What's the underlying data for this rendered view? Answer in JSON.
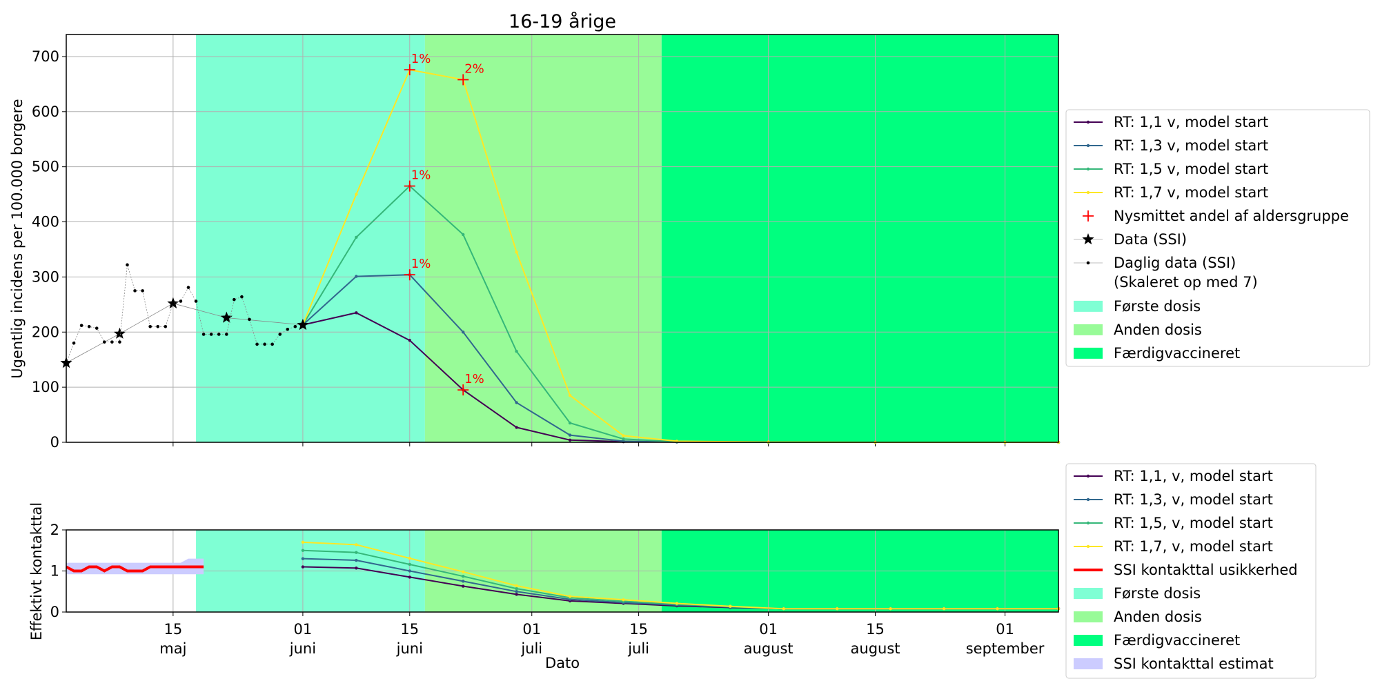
{
  "chart_data": [
    {
      "type": "line",
      "title": "16-19 årige",
      "xlabel": "",
      "ylabel": "Ugentlig incidens per 100.000 borgere",
      "ylim": [
        0,
        740
      ],
      "yticks": [
        0,
        100,
        200,
        300,
        400,
        500,
        600,
        700
      ],
      "xlim": [
        "2021-05-01",
        "2021-09-08"
      ],
      "grid": true,
      "legend_position": "right",
      "shaded_regions": [
        {
          "name": "Første dosis",
          "start": "2021-05-18",
          "end": "2021-06-17",
          "color": "#7fffd4"
        },
        {
          "name": "Anden dosis",
          "start": "2021-06-17",
          "end": "2021-07-18",
          "color": "#98fb98"
        },
        {
          "name": "Færdigvaccineret",
          "start": "2021-07-18",
          "end": "2021-09-08",
          "color": "#00ff7f"
        }
      ],
      "series": [
        {
          "name": "RT: 1,1 v, model start",
          "color": "#440154",
          "x": [
            "2021-06-01",
            "2021-06-08",
            "2021-06-15",
            "2021-06-22",
            "2021-06-29",
            "2021-07-06",
            "2021-07-13",
            "2021-07-20",
            "2021-08-01",
            "2021-08-15",
            "2021-09-01",
            "2021-09-08"
          ],
          "y": [
            213,
            235,
            185,
            95,
            27,
            4,
            1,
            0.5,
            0,
            0,
            0,
            0
          ]
        },
        {
          "name": "RT: 1,3 v, model start",
          "color": "#31688e",
          "x": [
            "2021-06-01",
            "2021-06-08",
            "2021-06-15",
            "2021-06-22",
            "2021-06-29",
            "2021-07-06",
            "2021-07-13",
            "2021-07-20",
            "2021-08-01",
            "2021-08-15",
            "2021-09-01",
            "2021-09-08"
          ],
          "y": [
            213,
            301,
            304,
            200,
            72,
            13,
            2,
            0.5,
            0,
            0,
            0,
            0
          ]
        },
        {
          "name": "RT: 1,5 v, model start",
          "color": "#35b779",
          "x": [
            "2021-06-01",
            "2021-06-08",
            "2021-06-15",
            "2021-06-22",
            "2021-06-29",
            "2021-07-06",
            "2021-07-13",
            "2021-07-20",
            "2021-08-01",
            "2021-08-15",
            "2021-09-01",
            "2021-09-08"
          ],
          "y": [
            213,
            372,
            465,
            377,
            165,
            35,
            6,
            1,
            0,
            0,
            0,
            0
          ]
        },
        {
          "name": "RT: 1,7 v, model start",
          "color": "#fde725",
          "x": [
            "2021-06-01",
            "2021-06-08",
            "2021-06-15",
            "2021-06-22",
            "2021-06-29",
            "2021-07-06",
            "2021-07-13",
            "2021-07-20",
            "2021-08-01",
            "2021-08-15",
            "2021-09-01",
            "2021-09-08"
          ],
          "y": [
            213,
            450,
            676,
            658,
            345,
            85,
            12,
            2,
            0.5,
            0,
            0,
            0
          ]
        },
        {
          "name": "Nysmittet andel af aldersgruppe",
          "marker": "+",
          "color": "#ff0000",
          "x": [
            "2021-06-22",
            "2021-06-15",
            "2021-06-15",
            "2021-06-15",
            "2021-06-22"
          ],
          "y": [
            95,
            304,
            465,
            676,
            658
          ],
          "labels": [
            "1%",
            "1%",
            "1%",
            "1%",
            "2%"
          ]
        },
        {
          "name": "Data (SSI)",
          "marker": "star",
          "color": "#000000",
          "x": [
            "2021-05-01",
            "2021-05-08",
            "2021-05-15",
            "2021-05-22",
            "2021-06-01"
          ],
          "y": [
            144,
            197,
            252,
            226,
            213
          ]
        },
        {
          "name": "Daglig data (SSI)\n(Skaleret op med 7)",
          "marker": "dot",
          "color": "#000000",
          "x": [
            "2021-05-01",
            "2021-05-02",
            "2021-05-03",
            "2021-05-04",
            "2021-05-05",
            "2021-05-06",
            "2021-05-07",
            "2021-05-08",
            "2021-05-09",
            "2021-05-10",
            "2021-05-11",
            "2021-05-12",
            "2021-05-13",
            "2021-05-14",
            "2021-05-15",
            "2021-05-16",
            "2021-05-17",
            "2021-05-18",
            "2021-05-19",
            "2021-05-20",
            "2021-05-21",
            "2021-05-22",
            "2021-05-23",
            "2021-05-24",
            "2021-05-25",
            "2021-05-26",
            "2021-05-27",
            "2021-05-28",
            "2021-05-29",
            "2021-05-30",
            "2021-05-31"
          ],
          "y": [
            144,
            180,
            212,
            210,
            207,
            182,
            182,
            182,
            322,
            275,
            275,
            210,
            210,
            210,
            252,
            256,
            281,
            256,
            196,
            196,
            196,
            196,
            259,
            264,
            223,
            178,
            178,
            178,
            196,
            205,
            210
          ]
        }
      ]
    },
    {
      "type": "line",
      "title": "",
      "xlabel": "Dato",
      "ylabel": "Effektivt kontakttal",
      "ylim": [
        0,
        2
      ],
      "yticks": [
        0,
        1,
        2
      ],
      "xticks": [
        {
          "date": "2021-05-15",
          "label": "15\nmaj"
        },
        {
          "date": "2021-06-01",
          "label": "01\njuni"
        },
        {
          "date": "2021-06-15",
          "label": "15\njuni"
        },
        {
          "date": "2021-07-01",
          "label": "01\njuli"
        },
        {
          "date": "2021-07-15",
          "label": "15\njuli"
        },
        {
          "date": "2021-08-01",
          "label": "01\naugust"
        },
        {
          "date": "2021-08-15",
          "label": "15\naugust"
        },
        {
          "date": "2021-09-01",
          "label": "01\nseptember"
        }
      ],
      "xlim": [
        "2021-05-01",
        "2021-09-08"
      ],
      "grid": true,
      "legend_position": "right",
      "shaded_regions": [
        {
          "name": "Første dosis",
          "start": "2021-05-18",
          "end": "2021-06-17",
          "color": "#7fffd4"
        },
        {
          "name": "Anden dosis",
          "start": "2021-06-17",
          "end": "2021-07-18",
          "color": "#98fb98"
        },
        {
          "name": "Færdigvaccineret",
          "start": "2021-07-18",
          "end": "2021-09-08",
          "color": "#00ff7f"
        }
      ],
      "band": {
        "name": "SSI kontakttal estimat",
        "color": "#ccccff",
        "x": [
          "2021-05-01",
          "2021-05-14",
          "2021-05-15",
          "2021-05-16",
          "2021-05-17",
          "2021-05-18",
          "2021-05-19"
        ],
        "lower": [
          0.92,
          0.92,
          0.92,
          0.92,
          0.92,
          0.92,
          0.92
        ],
        "upper": [
          1.2,
          1.2,
          1.2,
          1.2,
          1.3,
          1.3,
          1.3
        ]
      },
      "series": [
        {
          "name": "RT: 1,1, v, model start",
          "color": "#440154",
          "x": [
            "2021-06-01",
            "2021-06-08",
            "2021-06-15",
            "2021-06-22",
            "2021-06-29",
            "2021-07-06",
            "2021-07-13",
            "2021-07-20",
            "2021-07-27",
            "2021-08-03",
            "2021-08-10",
            "2021-08-17",
            "2021-08-24",
            "2021-08-31",
            "2021-09-08"
          ],
          "y": [
            1.1,
            1.07,
            0.85,
            0.63,
            0.43,
            0.27,
            0.21,
            0.15,
            0.11,
            0.08,
            0.08,
            0.08,
            0.08,
            0.08,
            0.08
          ]
        },
        {
          "name": "RT: 1,3, v, model start",
          "color": "#31688e",
          "x": [
            "2021-06-01",
            "2021-06-08",
            "2021-06-15",
            "2021-06-22",
            "2021-06-29",
            "2021-07-06",
            "2021-07-13",
            "2021-07-20",
            "2021-07-27",
            "2021-08-03",
            "2021-08-10",
            "2021-08-17",
            "2021-08-24",
            "2021-08-31",
            "2021-09-08"
          ],
          "y": [
            1.3,
            1.26,
            1.0,
            0.75,
            0.5,
            0.31,
            0.23,
            0.17,
            0.12,
            0.08,
            0.08,
            0.08,
            0.08,
            0.08,
            0.08
          ]
        },
        {
          "name": "RT: 1,5, v, model start",
          "color": "#35b779",
          "x": [
            "2021-06-01",
            "2021-06-08",
            "2021-06-15",
            "2021-06-22",
            "2021-06-29",
            "2021-07-06",
            "2021-07-13",
            "2021-07-20",
            "2021-07-27",
            "2021-08-03",
            "2021-08-10",
            "2021-08-17",
            "2021-08-24",
            "2021-08-31",
            "2021-09-08"
          ],
          "y": [
            1.5,
            1.45,
            1.16,
            0.87,
            0.57,
            0.35,
            0.26,
            0.19,
            0.13,
            0.08,
            0.08,
            0.08,
            0.08,
            0.08,
            0.08
          ]
        },
        {
          "name": "RT: 1,7, v, model start",
          "color": "#fde725",
          "x": [
            "2021-06-01",
            "2021-06-08",
            "2021-06-15",
            "2021-06-22",
            "2021-06-29",
            "2021-07-06",
            "2021-07-13",
            "2021-07-20",
            "2021-07-27",
            "2021-08-03",
            "2021-08-10",
            "2021-08-17",
            "2021-08-24",
            "2021-08-31",
            "2021-09-08"
          ],
          "y": [
            1.7,
            1.64,
            1.31,
            0.98,
            0.64,
            0.38,
            0.3,
            0.21,
            0.14,
            0.08,
            0.08,
            0.08,
            0.08,
            0.08,
            0.08
          ]
        },
        {
          "name": "SSI kontakttal usikkerhed",
          "color": "#ff0000",
          "x": [
            "2021-05-01",
            "2021-05-02",
            "2021-05-03",
            "2021-05-04",
            "2021-05-05",
            "2021-05-06",
            "2021-05-07",
            "2021-05-08",
            "2021-05-09",
            "2021-05-10",
            "2021-05-11",
            "2021-05-12",
            "2021-05-13",
            "2021-05-14",
            "2021-05-15",
            "2021-05-16",
            "2021-05-17",
            "2021-05-18",
            "2021-05-19"
          ],
          "y": [
            1.1,
            1.0,
            1.0,
            1.1,
            1.1,
            1.0,
            1.1,
            1.1,
            1.0,
            1.0,
            1.0,
            1.1,
            1.1,
            1.1,
            1.1,
            1.1,
            1.1,
            1.1,
            1.1
          ]
        }
      ]
    }
  ],
  "legends": {
    "top": [
      "RT: 1,1 v, model start",
      "RT: 1,3 v, model start",
      "RT: 1,5 v, model start",
      "RT: 1,7 v, model start",
      "Nysmittet andel af aldersgruppe",
      "Data (SSI)",
      "Daglig data (SSI)",
      "(Skaleret op med 7)",
      "Første dosis",
      "Anden dosis",
      "Færdigvaccineret"
    ],
    "bottom": [
      "RT: 1,1, v, model start",
      "RT: 1,3, v, model start",
      "RT: 1,5, v, model start",
      "RT: 1,7, v, model start",
      "SSI kontakttal usikkerhed",
      "Første dosis",
      "Anden dosis",
      "Færdigvaccineret",
      "SSI kontakttal estimat"
    ]
  }
}
